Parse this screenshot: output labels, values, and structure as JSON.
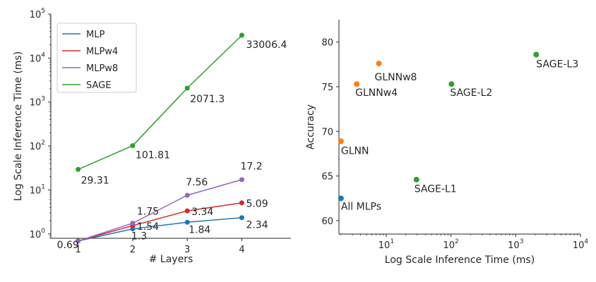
{
  "chart_data": [
    {
      "type": "line",
      "yscale": "log",
      "xlabel": "# Layers",
      "ylabel": "Log Scale Inference Time (ms)",
      "x": [
        1,
        2,
        3,
        4
      ],
      "xticks": [
        "1",
        "2",
        "3",
        "4"
      ],
      "xlim": [
        0.5,
        4.9
      ],
      "ylim_exp": [
        -0.1,
        5
      ],
      "yticks": [
        {
          "base": "10",
          "exp": "0",
          "value": 1
        },
        {
          "base": "10",
          "exp": "1",
          "value": 10
        },
        {
          "base": "10",
          "exp": "2",
          "value": 100
        },
        {
          "base": "10",
          "exp": "3",
          "value": 1000
        },
        {
          "base": "10",
          "exp": "4",
          "value": 10000
        },
        {
          "base": "10",
          "exp": "5",
          "value": 100000
        }
      ],
      "legend_position": "top-left",
      "series": [
        {
          "name": "MLP",
          "color": "#1f77b4",
          "values": [
            0.69,
            1.3,
            1.84,
            2.34
          ],
          "labels": [
            "0.69",
            "1.3",
            "1.84",
            "2.34"
          ]
        },
        {
          "name": "MLPw4",
          "color": "#d62728",
          "values": [
            0.69,
            1.54,
            3.34,
            5.09
          ],
          "labels": [
            "",
            "1.54",
            "3.34",
            "5.09"
          ]
        },
        {
          "name": "MLPw8",
          "color": "#9467bd",
          "values": [
            0.69,
            1.75,
            7.56,
            17.2
          ],
          "labels": [
            "",
            "1.75",
            "7.56",
            "17.2"
          ]
        },
        {
          "name": "SAGE",
          "color": "#2ca02c",
          "values": [
            29.31,
            101.81,
            2071.3,
            33006.4
          ],
          "labels": [
            "29.31",
            "101.81",
            "2071.3",
            "33006.4"
          ]
        }
      ]
    },
    {
      "type": "scatter",
      "xscale": "log",
      "xlabel": "Log Scale Inference Time (ms)",
      "ylabel": "Accuracy",
      "xlim_exp": [
        0.27,
        4
      ],
      "ylim": [
        58.5,
        82.5
      ],
      "xticks": [
        {
          "base": "10",
          "exp": "1",
          "value": 10
        },
        {
          "base": "10",
          "exp": "2",
          "value": 100
        },
        {
          "base": "10",
          "exp": "3",
          "value": 1000
        },
        {
          "base": "10",
          "exp": "4",
          "value": 10000
        }
      ],
      "yticks": [
        "60",
        "65",
        "70",
        "75",
        "80"
      ],
      "points": [
        {
          "label": "All MLPs",
          "x": 2.0,
          "y": 62.5,
          "color": "#1f77b4"
        },
        {
          "label": "GLNN",
          "x": 2.0,
          "y": 68.9,
          "color": "#ff7f0e"
        },
        {
          "label": "GLNNw4",
          "x": 3.5,
          "y": 75.3,
          "color": "#ff7f0e"
        },
        {
          "label": "GLNNw8",
          "x": 7.7,
          "y": 77.6,
          "color": "#ff7f0e"
        },
        {
          "label": "SAGE-L1",
          "x": 29.3,
          "y": 64.6,
          "color": "#2ca02c"
        },
        {
          "label": "SAGE-L2",
          "x": 101.8,
          "y": 75.3,
          "color": "#2ca02c"
        },
        {
          "label": "SAGE-L3",
          "x": 2071.3,
          "y": 78.6,
          "color": "#2ca02c"
        }
      ]
    }
  ]
}
